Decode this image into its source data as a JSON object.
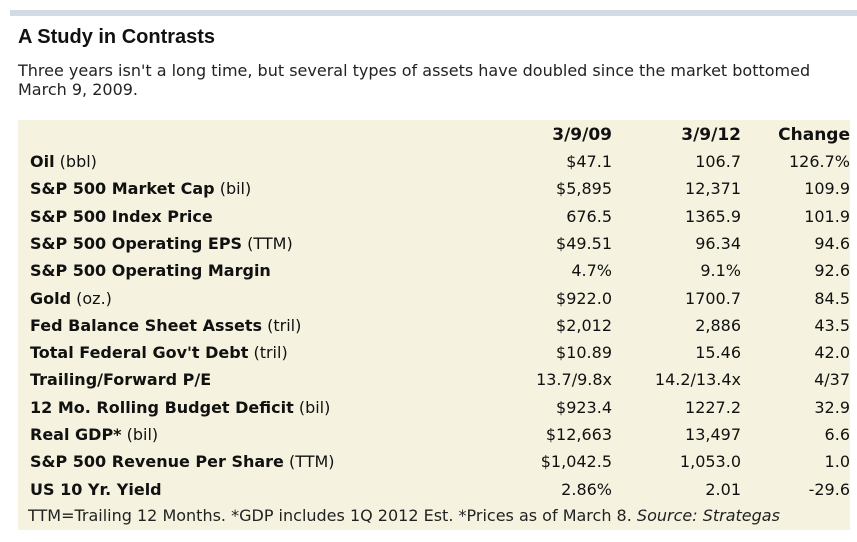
{
  "title": "A Study in Contrasts",
  "subtitle": "Three years isn't a long time, but several types of assets have doubled since the market bottomed March 9, 2009.",
  "table": {
    "headers": [
      "",
      "3/9/09",
      "3/9/12",
      "Change"
    ],
    "rows": [
      {
        "name": "Oil",
        "unit": " (bbl)",
        "v1": "$47.1",
        "v2": "106.7",
        "v3": "126.7%"
      },
      {
        "name": "S&P 500 Market Cap",
        "unit": " (bil)",
        "v1": "$5,895",
        "v2": "12,371",
        "v3": "109.9"
      },
      {
        "name": "S&P 500 Index Price",
        "unit": "",
        "v1": "676.5",
        "v2": "1365.9",
        "v3": "101.9"
      },
      {
        "name": "S&P 500 Operating EPS",
        "unit": " (TTM)",
        "v1": "$49.51",
        "v2": "96.34",
        "v3": "94.6"
      },
      {
        "name": "S&P 500 Operating Margin",
        "unit": "",
        "v1": "4.7%",
        "v2": "9.1%",
        "v3": "92.6"
      },
      {
        "name": "Gold",
        "unit": " (oz.)",
        "v1": "$922.0",
        "v2": "1700.7",
        "v3": "84.5"
      },
      {
        "name": "Fed Balance Sheet Assets",
        "unit": " (tril)",
        "v1": "$2,012",
        "v2": "2,886",
        "v3": "43.5"
      },
      {
        "name": "Total Federal Gov't Debt",
        "unit": " (tril)",
        "v1": "$10.89",
        "v2": "15.46",
        "v3": "42.0"
      },
      {
        "name": "Trailing/Forward P/E",
        "unit": "",
        "v1": "13.7/9.8x",
        "v2": "14.2/13.4x",
        "v3": "4/37"
      },
      {
        "name": "12 Mo. Rolling Budget Deficit",
        "unit": " (bil)",
        "v1": "$923.4",
        "v2": "1227.2",
        "v3": "32.9"
      },
      {
        "name": "Real GDP*",
        "unit": " (bil)",
        "v1": "$12,663",
        "v2": "13,497",
        "v3": "6.6"
      },
      {
        "name": "S&P 500 Revenue Per Share",
        "unit": " (TTM)",
        "v1": "$1,042.5",
        "v2": "1,053.0",
        "v3": "1.0"
      },
      {
        "name": "US 10 Yr. Yield",
        "unit": "",
        "v1": "2.86%",
        "v2": "2.01",
        "v3": "-29.6"
      }
    ]
  },
  "footnote": {
    "text": "TTM=Trailing 12 Months. *GDP includes 1Q 2012 Est. *Prices as of March 8. ",
    "source": "Source: Strategas"
  }
}
